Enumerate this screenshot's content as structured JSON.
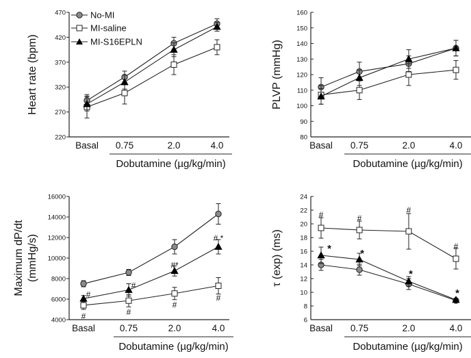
{
  "legend": [
    "No-MI",
    "MI-saline",
    "MI-S16EPLN"
  ],
  "chart_data": [
    {
      "type": "line",
      "xlabel": "Dobutamine (µg/kg/min)",
      "ylabel": "Heart rate (bpm)",
      "categories": [
        "Basal",
        "0.75",
        "2.0",
        "4.0"
      ],
      "ylim": [
        220,
        470
      ],
      "yticks": [
        220,
        270,
        320,
        370,
        420,
        470
      ],
      "series": [
        {
          "name": "No-MI",
          "values": [
            293,
            340,
            408,
            447
          ],
          "err": [
            12,
            12,
            12,
            10
          ]
        },
        {
          "name": "MI-saline",
          "values": [
            280,
            308,
            365,
            400
          ],
          "err": [
            22,
            22,
            20,
            15
          ]
        },
        {
          "name": "MI-S16EPLN",
          "values": [
            286,
            330,
            395,
            441
          ],
          "err": [
            14,
            14,
            14,
            9
          ]
        }
      ],
      "annotations": []
    },
    {
      "type": "line",
      "xlabel": "Dobutamine (µg/kg/min)",
      "ylabel": "PLVP (mmHg)",
      "categories": [
        "Basal",
        "0.75",
        "2.0",
        "4.0"
      ],
      "ylim": [
        80,
        160
      ],
      "yticks": [
        80,
        90,
        100,
        110,
        120,
        130,
        140,
        150,
        160
      ],
      "series": [
        {
          "name": "No-MI",
          "values": [
            112,
            122,
            127,
            137
          ],
          "err": [
            6,
            6,
            5,
            5
          ]
        },
        {
          "name": "MI-saline",
          "values": [
            107,
            110,
            120,
            123
          ],
          "err": [
            6,
            6,
            7,
            6
          ]
        },
        {
          "name": "MI-S16EPLN",
          "values": [
            106,
            118,
            130,
            137
          ],
          "err": [
            5,
            5,
            6,
            5
          ]
        }
      ],
      "annotations": []
    },
    {
      "type": "line",
      "xlabel": "Dobutamine (µg/kg/min)",
      "ylabel_lines": [
        "Maximum dP/dt",
        "(mmHg/s)"
      ],
      "categories": [
        "Basal",
        "0.75",
        "2.0",
        "4.0"
      ],
      "ylim": [
        4000,
        16000
      ],
      "yticks": [
        4000,
        6000,
        8000,
        10000,
        12000,
        14000,
        16000
      ],
      "series": [
        {
          "name": "No-MI",
          "values": [
            7500,
            8600,
            11100,
            14300
          ],
          "err": [
            300,
            300,
            700,
            1000
          ]
        },
        {
          "name": "MI-saline",
          "values": [
            5400,
            5850,
            6550,
            7300
          ],
          "err": [
            400,
            600,
            600,
            800
          ]
        },
        {
          "name": "MI-S16EPLN",
          "values": [
            6050,
            6900,
            8750,
            11100
          ],
          "err": [
            300,
            600,
            500,
            700
          ]
        }
      ],
      "annotations": [
        {
          "cat": "Basal",
          "text": "#",
          "y": 6450,
          "dx": 7
        },
        {
          "cat": "Basal",
          "text": "#",
          "y": 4350,
          "dx": 0
        },
        {
          "cat": "0.75",
          "text": "#",
          "y": 7350,
          "dx": 7
        },
        {
          "cat": "0.75",
          "text": "#",
          "y": 4750,
          "dx": 0
        },
        {
          "cat": "2.0",
          "text": "#*",
          "y": 9300,
          "dx": 0
        },
        {
          "cat": "2.0",
          "text": "#",
          "y": 5450,
          "dx": 0
        },
        {
          "cat": "4.0",
          "text": "# *",
          "y": 11950,
          "dx": 0
        },
        {
          "cat": "4.0",
          "text": "#",
          "y": 6100,
          "dx": 0
        }
      ]
    },
    {
      "type": "line",
      "xlabel": "Dobutamine (µg/kg/min)",
      "ylabel": "τ (exp) (ms)",
      "categories": [
        "Basal",
        "0.75",
        "2.0",
        "4.0"
      ],
      "ylim": [
        6,
        24
      ],
      "yticks": [
        6,
        8,
        10,
        12,
        14,
        16,
        18,
        20,
        22,
        24
      ],
      "series": [
        {
          "name": "No-MI",
          "values": [
            14.0,
            13.3,
            11.2,
            8.8
          ],
          "err": [
            0.8,
            0.8,
            0.8,
            0.2
          ]
        },
        {
          "name": "MI-saline",
          "values": [
            19.4,
            19.1,
            18.9,
            14.9
          ],
          "err": [
            1.5,
            1.3,
            2.6,
            1.5
          ]
        },
        {
          "name": "MI-S16EPLN",
          "values": [
            15.4,
            14.8,
            11.6,
            8.9
          ],
          "err": [
            1.2,
            0.9,
            0.7,
            0.2
          ]
        }
      ],
      "annotations": [
        {
          "cat": "Basal",
          "text": "#",
          "y": 21.3,
          "dx": 0
        },
        {
          "cat": "Basal",
          "text": "*",
          "y": 16.3,
          "dx": 12
        },
        {
          "cat": "0.75",
          "text": "#",
          "y": 20.8,
          "dx": 0
        },
        {
          "cat": "0.75",
          "text": "*",
          "y": 15.6,
          "dx": 4
        },
        {
          "cat": "2.0",
          "text": "#",
          "y": 22.0,
          "dx": 0
        },
        {
          "cat": "2.0",
          "text": "*",
          "y": 12.6,
          "dx": 3
        },
        {
          "cat": "4.0",
          "text": "#",
          "y": 16.7,
          "dx": 0
        },
        {
          "cat": "4.0",
          "text": "*",
          "y": 9.8,
          "dx": 2
        }
      ]
    }
  ]
}
